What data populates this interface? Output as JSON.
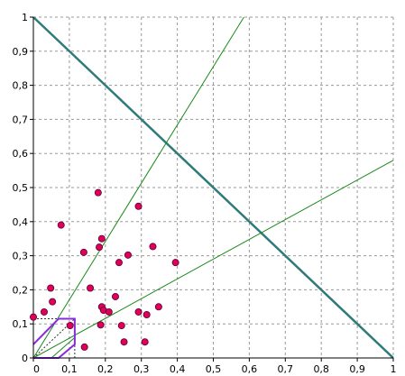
{
  "chart_data": {
    "type": "scatter",
    "title": "",
    "xlabel": "",
    "ylabel": "",
    "xlim": [
      0,
      1
    ],
    "ylim": [
      0,
      1
    ],
    "grid": true,
    "grid_style": "dashed",
    "x_ticks": [
      "0",
      "0,1",
      "0,2",
      "0,3",
      "0,4",
      "0,5",
      "0,6",
      "0,7",
      "0,8",
      "0,9",
      "1"
    ],
    "y_ticks": [
      "0",
      "0,1",
      "0,2",
      "0,3",
      "0,4",
      "0,5",
      "0,6",
      "0,7",
      "0,8",
      "0,9",
      "1"
    ],
    "points": [
      {
        "x": 0.0,
        "y": 0.12
      },
      {
        "x": 0.03,
        "y": 0.135
      },
      {
        "x": 0.048,
        "y": 0.205
      },
      {
        "x": 0.053,
        "y": 0.165
      },
      {
        "x": 0.077,
        "y": 0.39
      },
      {
        "x": 0.102,
        "y": 0.095
      },
      {
        "x": 0.14,
        "y": 0.31
      },
      {
        "x": 0.142,
        "y": 0.032
      },
      {
        "x": 0.158,
        "y": 0.205
      },
      {
        "x": 0.18,
        "y": 0.485
      },
      {
        "x": 0.183,
        "y": 0.325
      },
      {
        "x": 0.187,
        "y": 0.097
      },
      {
        "x": 0.19,
        "y": 0.35
      },
      {
        "x": 0.19,
        "y": 0.15
      },
      {
        "x": 0.195,
        "y": 0.14
      },
      {
        "x": 0.21,
        "y": 0.135
      },
      {
        "x": 0.228,
        "y": 0.18
      },
      {
        "x": 0.238,
        "y": 0.28
      },
      {
        "x": 0.245,
        "y": 0.095
      },
      {
        "x": 0.252,
        "y": 0.047
      },
      {
        "x": 0.263,
        "y": 0.302
      },
      {
        "x": 0.292,
        "y": 0.445
      },
      {
        "x": 0.292,
        "y": 0.135
      },
      {
        "x": 0.31,
        "y": 0.047
      },
      {
        "x": 0.315,
        "y": 0.127
      },
      {
        "x": 0.332,
        "y": 0.327
      },
      {
        "x": 0.348,
        "y": 0.15
      },
      {
        "x": 0.395,
        "y": 0.28
      }
    ],
    "lines": [
      {
        "kind": "thick-teal",
        "color": "#2f7a7a",
        "from": [
          0,
          1
        ],
        "to": [
          1,
          0
        ]
      },
      {
        "kind": "thin-green",
        "color": "#1a8a1a",
        "from": [
          0,
          0
        ],
        "to": [
          0.585,
          1
        ]
      },
      {
        "kind": "thin-green",
        "color": "#1a8a1a",
        "from": [
          0,
          0
        ],
        "to": [
          1,
          0.58
        ]
      },
      {
        "kind": "thin-green",
        "color": "#1a8a1a",
        "from": [
          0.05,
          0
        ],
        "to": [
          0.115,
          0.06
        ]
      }
    ],
    "polygon": {
      "color": "#8a2be2",
      "vertices": [
        [
          0,
          0.04
        ],
        [
          0.07,
          0.115
        ],
        [
          0.115,
          0.115
        ],
        [
          0.115,
          0.04
        ],
        [
          0.07,
          0
        ],
        [
          0,
          0
        ]
      ]
    },
    "dotted_segments": [
      {
        "from": [
          0,
          0.115
        ],
        "to": [
          0.115,
          0.115
        ]
      },
      {
        "from": [
          0.115,
          0
        ],
        "to": [
          0.115,
          0.115
        ]
      },
      {
        "from": [
          0,
          0
        ],
        "to": [
          0.115,
          0.115
        ]
      }
    ],
    "colors": {
      "point_fill": "#e0005a",
      "point_stroke": "#5a0030",
      "grid": "#9a9a9a",
      "axis": "#000000"
    }
  }
}
